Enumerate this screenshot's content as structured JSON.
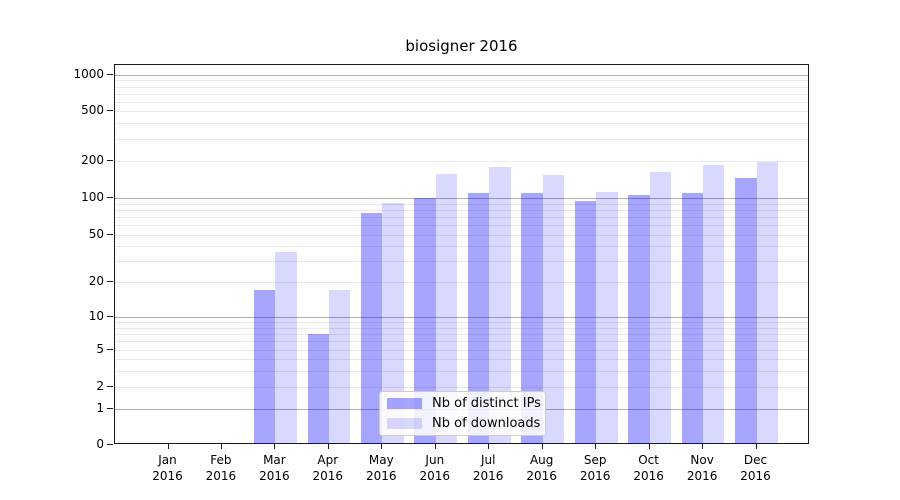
{
  "title": "biosigner 2016",
  "chart_data": {
    "type": "bar",
    "title": "biosigner 2016",
    "categories": [
      "Jan 2016",
      "Feb 2016",
      "Mar 2016",
      "Apr 2016",
      "May 2016",
      "Jun 2016",
      "Jul 2016",
      "Aug 2016",
      "Sep 2016",
      "Oct 2016",
      "Nov 2016",
      "Dec 2016"
    ],
    "series": [
      {
        "name": "Nb of distinct IPs",
        "color": "#0000ff59",
        "values": [
          0,
          0,
          17,
          7,
          75,
          100,
          110,
          110,
          94,
          106,
          110,
          145
        ]
      },
      {
        "name": "Nb of downloads",
        "color": "#0000ff26",
        "values": [
          0,
          0,
          36,
          17,
          91,
          158,
          180,
          153,
          112,
          164,
          185,
          196
        ]
      }
    ],
    "xlabel": "",
    "ylabel": "",
    "yscale": "symlog",
    "yticks": [
      0,
      1,
      2,
      5,
      10,
      20,
      50,
      100,
      200,
      500,
      1000
    ],
    "ylim": [
      0,
      1200
    ],
    "grid": true,
    "legend_position": "lower center"
  },
  "axes": {
    "ytick_labels": [
      "0",
      "1",
      "2",
      "5",
      "10",
      "20",
      "50",
      "100",
      "200",
      "500",
      "1000"
    ],
    "grid_major_color": "#b0b0b0",
    "grid_minor_color": "#e9e9e9"
  }
}
